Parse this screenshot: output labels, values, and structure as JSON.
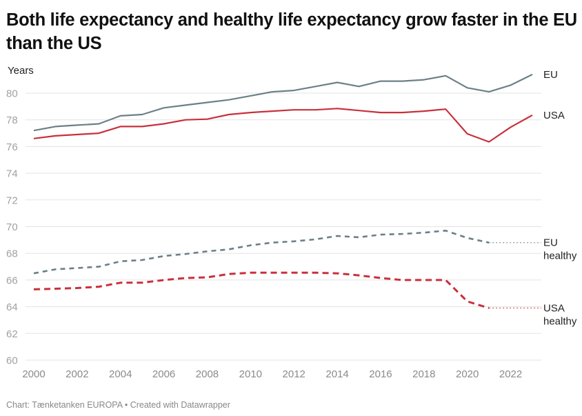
{
  "chart_data": {
    "type": "line",
    "title": "Both life expectancy and healthy life expectancy grow faster in the EU than the US",
    "ylabel": "Years",
    "xlabel": "",
    "ylim": [
      60,
      82
    ],
    "xlim": [
      2000,
      2023
    ],
    "y_ticks": [
      60,
      62,
      64,
      66,
      68,
      70,
      72,
      74,
      76,
      78,
      80
    ],
    "y_tick_labels": [
      "60",
      "62",
      "64",
      "66",
      "68",
      "70",
      "72",
      "74",
      "76",
      "78",
      "80"
    ],
    "x_ticks": [
      2000,
      2002,
      2004,
      2006,
      2008,
      2010,
      2012,
      2014,
      2016,
      2018,
      2020,
      2022
    ],
    "x_tick_labels": [
      "2000",
      "2002",
      "2004",
      "2006",
      "2008",
      "2010",
      "2012",
      "2014",
      "2016",
      "2018",
      "2020",
      "2022"
    ],
    "grid": "horizontal",
    "legend": "direct labels at right end of lines",
    "x": [
      2000,
      2001,
      2002,
      2003,
      2004,
      2005,
      2006,
      2007,
      2008,
      2009,
      2010,
      2011,
      2012,
      2013,
      2014,
      2015,
      2016,
      2017,
      2018,
      2019,
      2020,
      2021,
      2022,
      2023
    ],
    "series": [
      {
        "name": "EU",
        "label": [
          "EU"
        ],
        "color": "#6b8087",
        "style": "solid",
        "values": [
          77.2,
          77.5,
          77.6,
          77.7,
          78.3,
          78.4,
          78.9,
          79.1,
          79.3,
          79.5,
          79.8,
          80.1,
          80.2,
          80.5,
          80.8,
          80.5,
          80.9,
          80.9,
          81.0,
          81.3,
          80.4,
          80.1,
          80.6,
          81.4
        ]
      },
      {
        "name": "USA",
        "label": [
          "USA"
        ],
        "color": "#c9303c",
        "style": "solid",
        "values": [
          76.6,
          76.8,
          76.9,
          77.0,
          77.5,
          77.5,
          77.7,
          78.0,
          78.05,
          78.4,
          78.55,
          78.65,
          78.75,
          78.75,
          78.85,
          78.7,
          78.55,
          78.55,
          78.65,
          78.8,
          76.95,
          76.35,
          77.45,
          78.35
        ]
      },
      {
        "name": "EU healthy",
        "label": [
          "EU",
          "healthy"
        ],
        "color": "#6b8087",
        "style": "dashed",
        "extension": "dotted flat line to 2023",
        "values": [
          66.5,
          66.8,
          66.9,
          67.0,
          67.4,
          67.5,
          67.8,
          67.95,
          68.15,
          68.3,
          68.6,
          68.8,
          68.9,
          69.05,
          69.3,
          69.2,
          69.4,
          69.45,
          69.55,
          69.7,
          69.15,
          68.8,
          null,
          null
        ]
      },
      {
        "name": "USA healthy",
        "label": [
          "USA",
          "healthy"
        ],
        "color": "#c9303c",
        "style": "dashed",
        "extension": "dotted flat line to 2023",
        "values": [
          65.3,
          65.35,
          65.4,
          65.5,
          65.8,
          65.8,
          66.0,
          66.15,
          66.2,
          66.45,
          66.55,
          66.55,
          66.55,
          66.55,
          66.5,
          66.35,
          66.15,
          66.0,
          66.0,
          66.0,
          64.4,
          63.9,
          null,
          null
        ]
      }
    ],
    "footer": "Chart: Tænketanken EUROPA • Created with Datawrapper"
  }
}
